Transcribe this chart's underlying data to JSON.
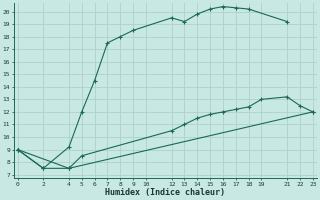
{
  "xlabel": "Humidex (Indice chaleur)",
  "bg_color": "#c8e8e4",
  "grid_color": "#b0d0cc",
  "line_color": "#1a6858",
  "xmin": -0.3,
  "xmax": 23.3,
  "ymin": 6.7,
  "ymax": 20.7,
  "xticks": [
    0,
    2,
    4,
    5,
    6,
    7,
    8,
    9,
    10,
    12,
    13,
    14,
    15,
    16,
    17,
    18,
    19,
    21,
    22,
    23
  ],
  "yticks": [
    7,
    8,
    9,
    10,
    11,
    12,
    13,
    14,
    15,
    16,
    17,
    18,
    19,
    20
  ],
  "curve1_x": [
    0,
    2,
    4,
    5,
    6,
    7,
    8,
    9,
    12,
    13,
    14,
    15,
    16,
    17,
    18,
    21
  ],
  "curve1_y": [
    9.0,
    7.5,
    9.2,
    12.0,
    14.5,
    17.5,
    18.0,
    18.5,
    19.5,
    19.2,
    19.8,
    20.2,
    20.4,
    20.3,
    20.2,
    19.2
  ],
  "curve2_x": [
    0,
    4,
    5,
    12,
    13,
    14,
    15,
    16,
    17,
    18,
    19,
    21,
    22,
    23
  ],
  "curve2_y": [
    9.0,
    7.5,
    8.5,
    10.5,
    11.0,
    11.5,
    11.8,
    12.0,
    12.2,
    12.4,
    13.0,
    13.2,
    12.5,
    12.0
  ],
  "curve3_x": [
    0,
    2,
    4,
    23
  ],
  "curve3_y": [
    9.0,
    7.5,
    7.5,
    12.0
  ]
}
